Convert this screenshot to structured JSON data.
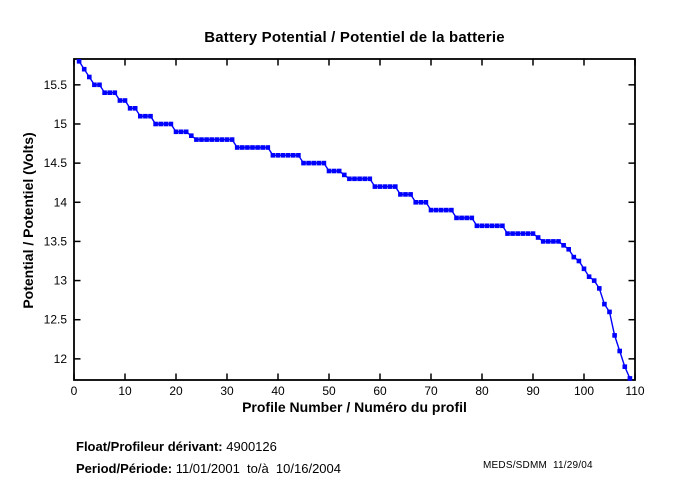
{
  "title": "Battery Potential / Potentiel de la batterie",
  "footer": {
    "float_label": "Float/Profileur dérivant:",
    "float_value": "4900126",
    "period_label": "Period/Période:",
    "period_value": "11/01/2001  to/à  10/16/2004",
    "credit": "MEDS/SDMM  11/29/04"
  },
  "chart_data": {
    "type": "line",
    "title": "Battery Potential / Potentiel de la batterie",
    "xlabel": "Profile Number / Numéro du profil",
    "ylabel": "Potential / Potentiel (Volts)",
    "xlim": [
      0,
      110
    ],
    "ylim": [
      11.73,
      15.83
    ],
    "xticks": [
      0,
      10,
      20,
      30,
      40,
      50,
      60,
      70,
      80,
      90,
      100,
      110
    ],
    "yticks": [
      12,
      12.5,
      13,
      13.5,
      14,
      14.5,
      15,
      15.5
    ],
    "grid": false,
    "legend": "none",
    "line_color": "#0000FF",
    "marker": "square",
    "x_start": 1,
    "x_step": 1,
    "n_points": 109,
    "values": [
      15.8,
      15.7,
      15.6,
      15.5,
      15.5,
      15.4,
      15.4,
      15.4,
      15.3,
      15.3,
      15.2,
      15.2,
      15.1,
      15.1,
      15.1,
      15.0,
      15.0,
      15.0,
      15.0,
      14.9,
      14.9,
      14.9,
      14.85,
      14.8,
      14.8,
      14.8,
      14.8,
      14.8,
      14.8,
      14.8,
      14.8,
      14.7,
      14.7,
      14.7,
      14.7,
      14.7,
      14.7,
      14.7,
      14.6,
      14.6,
      14.6,
      14.6,
      14.6,
      14.6,
      14.5,
      14.5,
      14.5,
      14.5,
      14.5,
      14.4,
      14.4,
      14.4,
      14.35,
      14.3,
      14.3,
      14.3,
      14.3,
      14.3,
      14.2,
      14.2,
      14.2,
      14.2,
      14.2,
      14.1,
      14.1,
      14.1,
      14.0,
      14.0,
      14.0,
      13.9,
      13.9,
      13.9,
      13.9,
      13.9,
      13.8,
      13.8,
      13.8,
      13.8,
      13.7,
      13.7,
      13.7,
      13.7,
      13.7,
      13.7,
      13.6,
      13.6,
      13.6,
      13.6,
      13.6,
      13.6,
      13.55,
      13.5,
      13.5,
      13.5,
      13.5,
      13.45,
      13.4,
      13.3,
      13.25,
      13.15,
      13.05,
      13.0,
      12.9,
      12.7,
      12.6,
      12.3,
      12.1,
      11.9,
      11.75
    ]
  }
}
